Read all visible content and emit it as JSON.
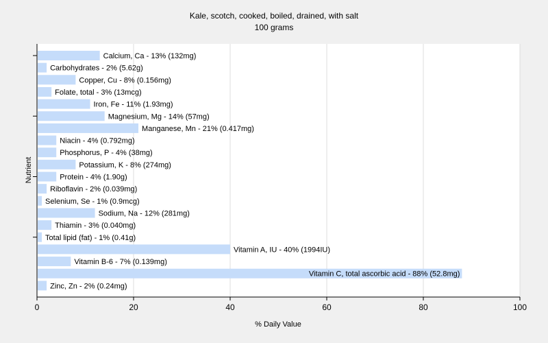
{
  "chart_data": {
    "type": "bar",
    "orientation": "horizontal",
    "title": "Kale, scotch, cooked, boiled, drained, with salt",
    "subtitle": "100 grams",
    "xlabel": "% Daily Value",
    "ylabel": "Nutrient",
    "xlim": [
      0,
      100
    ],
    "xticks": [
      0,
      20,
      40,
      60,
      80,
      100
    ],
    "grid": true,
    "bar_color": "#c5dcfa",
    "categories": [
      "Calcium, Ca",
      "Carbohydrates",
      "Copper, Cu",
      "Folate, total",
      "Iron, Fe",
      "Magnesium, Mg",
      "Manganese, Mn",
      "Niacin",
      "Phosphorus, P",
      "Potassium, K",
      "Protein",
      "Riboflavin",
      "Selenium, Se",
      "Sodium, Na",
      "Thiamin",
      "Total lipid (fat)",
      "Vitamin A, IU",
      "Vitamin B-6",
      "Vitamin C, total ascorbic acid",
      "Zinc, Zn"
    ],
    "values": [
      13,
      2,
      8,
      3,
      11,
      14,
      21,
      4,
      4,
      8,
      4,
      2,
      1,
      12,
      3,
      1,
      40,
      7,
      88,
      2
    ],
    "labels": [
      "Calcium, Ca - 13% (132mg)",
      "Carbohydrates - 2% (5.62g)",
      "Copper, Cu - 8% (0.156mg)",
      "Folate, total - 3% (13mcg)",
      "Iron, Fe - 11% (1.93mg)",
      "Magnesium, Mg - 14% (57mg)",
      "Manganese, Mn - 21% (0.417mg)",
      "Niacin - 4% (0.792mg)",
      "Phosphorus, P - 4% (38mg)",
      "Potassium, K - 8% (274mg)",
      "Protein - 4% (1.90g)",
      "Riboflavin - 2% (0.039mg)",
      "Selenium, Se - 1% (0.9mcg)",
      "Sodium, Na - 12% (281mg)",
      "Thiamin - 3% (0.040mg)",
      "Total lipid (fat) - 1% (0.41g)",
      "Vitamin A, IU - 40% (1994IU)",
      "Vitamin B-6 - 7% (0.139mg)",
      "Vitamin C, total ascorbic acid - 88% (52.8mg)",
      "Zinc, Zn - 2% (0.24mg)"
    ]
  }
}
